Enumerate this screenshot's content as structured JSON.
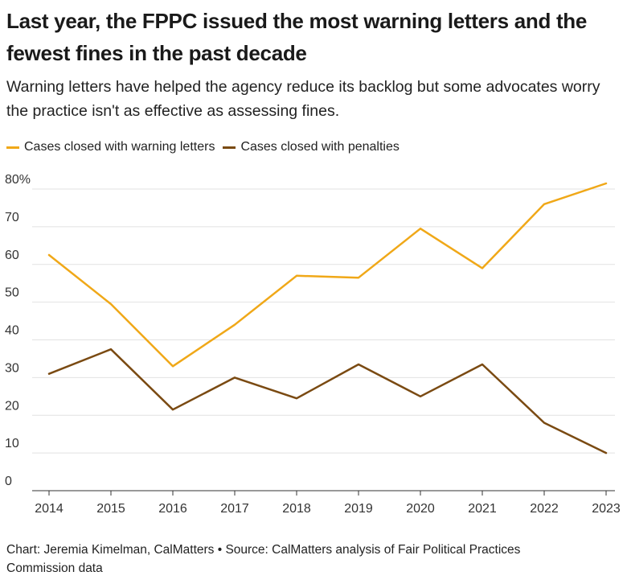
{
  "title": "Last year, the FPPC issued the most warning letters and the fewest fines in the past decade",
  "subtitle": "Warning letters have helped the agency reduce its backlog but some advocates worry the practice isn't as effective as assessing fines.",
  "source": "Chart: Jeremia Kimelman, CalMatters • Source: CalMatters analysis of Fair Political Practices Commission data",
  "colors": {
    "warning": "#f0a818",
    "penalties": "#7a4a12",
    "grid": "#e2e2e2",
    "axis": "#333333"
  },
  "chart_data": {
    "type": "line",
    "title": "Last year, the FPPC issued the most warning letters and the fewest fines in the past decade",
    "xlabel": "",
    "ylabel": "",
    "x": [
      "2014",
      "2015",
      "2016",
      "2017",
      "2018",
      "2019",
      "2020",
      "2021",
      "2022",
      "2023"
    ],
    "ylim": [
      0,
      80
    ],
    "yticks": [
      "0",
      "10",
      "20",
      "30",
      "40",
      "50",
      "60",
      "70",
      "80%"
    ],
    "grid": true,
    "legend_position": "top-left",
    "series": [
      {
        "name": "Cases closed with warning letters",
        "values": [
          62.5,
          49.5,
          33,
          44,
          57,
          56.5,
          69.5,
          59,
          76,
          81.5
        ]
      },
      {
        "name": "Cases closed with penalties",
        "values": [
          31,
          37.5,
          21.5,
          30,
          24.5,
          33.5,
          25,
          33.5,
          18,
          10
        ]
      }
    ]
  }
}
